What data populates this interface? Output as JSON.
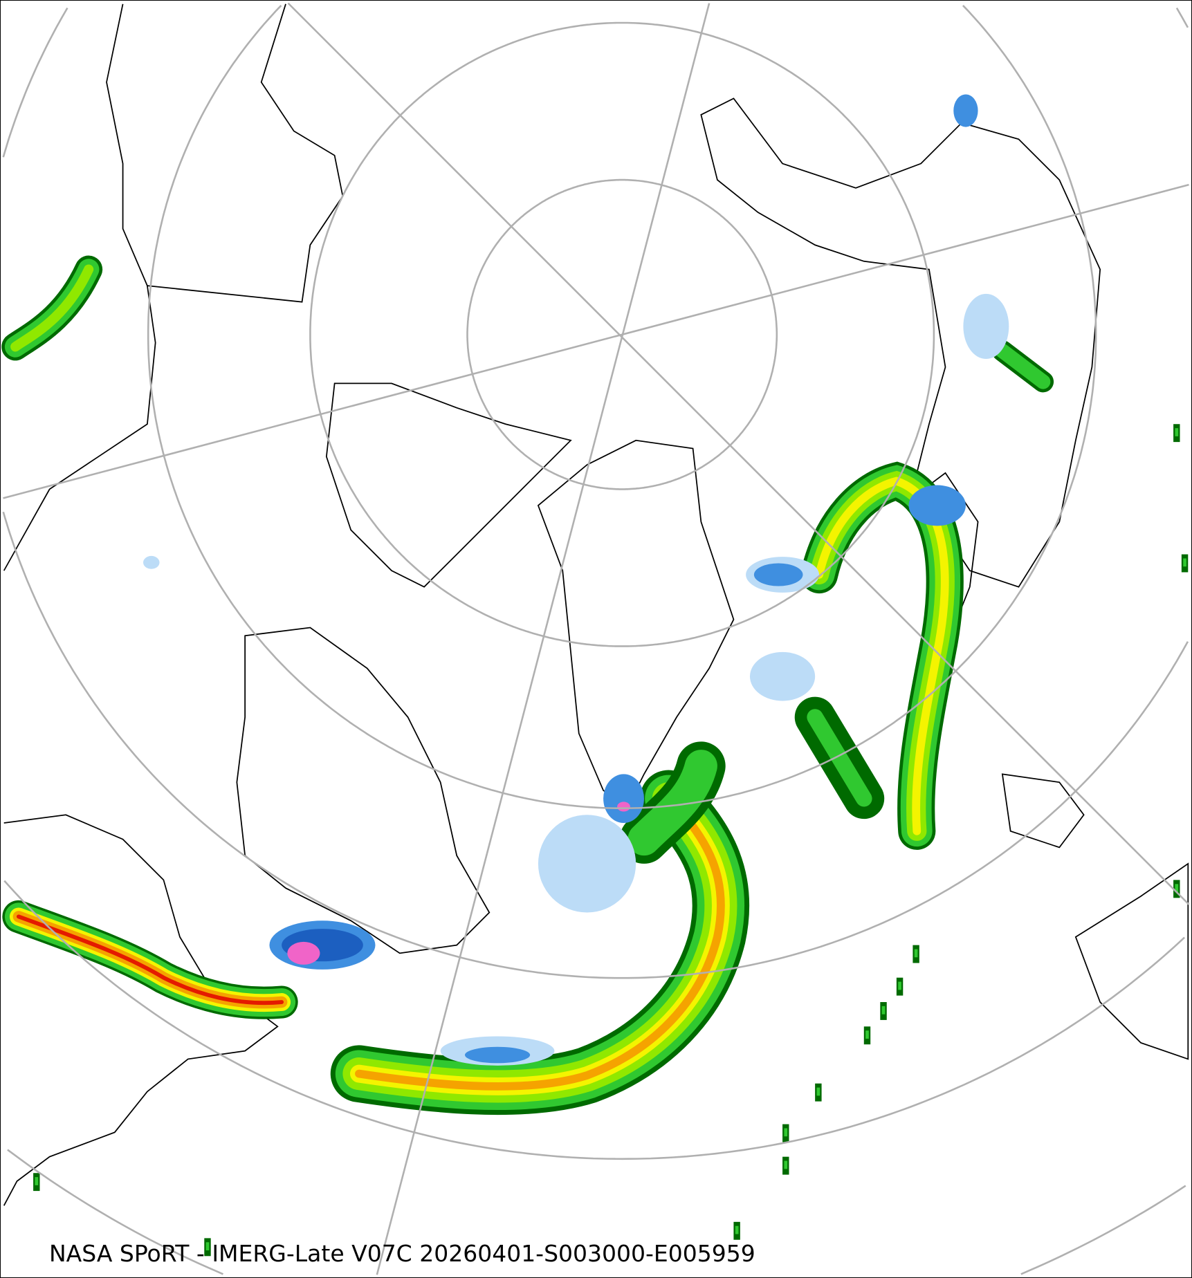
{
  "caption": "NASA SPoRT - IMERG-Late V07C 20260401-S003000-E005959",
  "projection": "north-polar-stereographic",
  "graticule": {
    "latitudes": [
      80,
      70,
      60,
      50,
      40,
      30
    ],
    "color": "#b0b0b0"
  },
  "precip_colors": {
    "light_blue": "#bcdcf7",
    "blue": "#3f8fe0",
    "dark_blue": "#1c5fc0",
    "dark_green": "#006a00",
    "green": "#30c830",
    "light_green": "#90e800",
    "yellow": "#f4f400",
    "orange": "#f5a300",
    "red": "#e41a00",
    "pink": "#f064c8"
  },
  "coastline_color": "#000000"
}
